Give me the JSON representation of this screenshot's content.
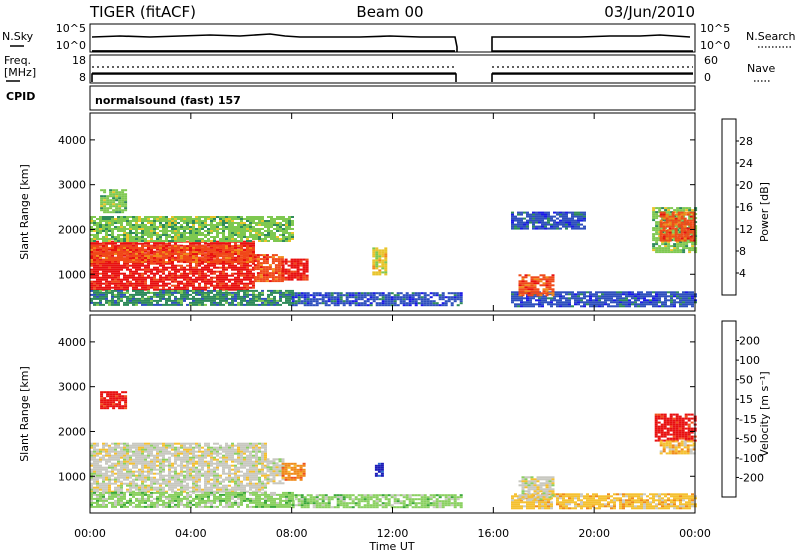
{
  "header": {
    "radar": "TIGER (fitACF)",
    "beam": "Beam 00",
    "date": "03/Jun/2010"
  },
  "summary": {
    "nsky_label": "N.Sky",
    "nsky_ticks": [
      "10^5",
      "10^0"
    ],
    "nsearch_label": "N.Search",
    "nsearch_ticks": [
      "10^5",
      "10^0"
    ],
    "freq_label_1": "Freq.",
    "freq_label_2": "[MHz]",
    "freq_ticks": [
      "18",
      "8"
    ],
    "nave_label": "Nave",
    "nave_ticks": [
      "60",
      "0"
    ],
    "cpid_label": "CPID",
    "cpid_value": "normalsound (fast) 157"
  },
  "x_axis": {
    "label": "Time UT",
    "ticks": [
      "00:00",
      "04:00",
      "08:00",
      "12:00",
      "16:00",
      "20:00",
      "00:00"
    ]
  },
  "chart_data": [
    {
      "type": "heatmap",
      "name": "power",
      "ylabel": "Slant Range [km]",
      "xlabel": "Time UT",
      "x_range_hours": [
        0,
        24
      ],
      "ylim": [
        180,
        4600
      ],
      "y_ticks": [
        1000,
        2000,
        3000,
        4000
      ],
      "data_gap_hours": [
        14.7,
        16.7
      ],
      "colorbar": {
        "label": "Power [dB]",
        "tick_labels": [
          "28",
          "24",
          "20",
          "16",
          "12",
          "8",
          "4"
        ],
        "levels": [
          {
            "from": 0,
            "to": 4,
            "color": "#1a1ae6"
          },
          {
            "from": 4,
            "to": 8,
            "color": "#2e4fbd"
          },
          {
            "from": 8,
            "to": 12,
            "color": "#2e8a5a"
          },
          {
            "from": 12,
            "to": 16,
            "color": "#7ec850"
          },
          {
            "from": 16,
            "to": 20,
            "color": "#e8c42a"
          },
          {
            "from": 20,
            "to": 24,
            "color": "#f08a1a"
          },
          {
            "from": 24,
            "to": 28,
            "color": "#f04a1a"
          },
          {
            "from": 28,
            "to": 32,
            "color": "#e81010"
          }
        ]
      },
      "regions": [
        {
          "t": [
            0.0,
            6.5
          ],
          "r": [
            650,
            1750
          ],
          "level": 7
        },
        {
          "t": [
            0.0,
            6.5
          ],
          "r": [
            1250,
            1650
          ],
          "level": 6
        },
        {
          "t": [
            6.5,
            7.6
          ],
          "r": [
            850,
            1450
          ],
          "level": 6
        },
        {
          "t": [
            7.6,
            8.6
          ],
          "r": [
            900,
            1350
          ],
          "level": 7
        },
        {
          "t": [
            0.0,
            8.0
          ],
          "r": [
            300,
            650
          ],
          "level": 2
        },
        {
          "t": [
            8.0,
            14.7
          ],
          "r": [
            300,
            600
          ],
          "level": 1
        },
        {
          "t": [
            0.0,
            8.0
          ],
          "r": [
            1750,
            2300
          ],
          "level": 3
        },
        {
          "t": [
            0.4,
            1.4
          ],
          "r": [
            2400,
            2900
          ],
          "level": 3
        },
        {
          "t": [
            16.7,
            24.0
          ],
          "r": [
            300,
            620
          ],
          "level": 1
        },
        {
          "t": [
            17.0,
            18.4
          ],
          "r": [
            550,
            1000
          ],
          "level": 6
        },
        {
          "t": [
            16.7,
            19.6
          ],
          "r": [
            2000,
            2400
          ],
          "level": 1
        },
        {
          "t": [
            22.3,
            24.0
          ],
          "r": [
            1500,
            2500
          ],
          "level": 3
        },
        {
          "t": [
            22.6,
            24.0
          ],
          "r": [
            1750,
            2400
          ],
          "level": 6
        },
        {
          "t": [
            11.2,
            11.7
          ],
          "r": [
            1000,
            1600
          ],
          "level": 4
        }
      ]
    },
    {
      "type": "heatmap",
      "name": "velocity",
      "ylabel": "Slant Range [km]",
      "xlabel": "Time UT",
      "x_range_hours": [
        0,
        24
      ],
      "ylim": [
        180,
        4600
      ],
      "y_ticks": [
        1000,
        2000,
        3000,
        4000
      ],
      "data_gap_hours": [
        14.7,
        16.7
      ],
      "colorbar": {
        "label": "Velocity [m s⁻¹]",
        "tick_labels": [
          "200",
          "100",
          "50",
          "15",
          "-15",
          "-50",
          "-100",
          "-200"
        ],
        "levels": [
          {
            "from": -300,
            "to": -200,
            "color": "#e81010"
          },
          {
            "from": -200,
            "to": -100,
            "color": "#f0501a"
          },
          {
            "from": -100,
            "to": -50,
            "color": "#f08a1a"
          },
          {
            "from": -50,
            "to": -15,
            "color": "#f5c030"
          },
          {
            "from": -15,
            "to": 15,
            "color": "#c8c8c0"
          },
          {
            "from": 15,
            "to": 50,
            "color": "#8ad060"
          },
          {
            "from": 50,
            "to": 100,
            "color": "#3aa83a"
          },
          {
            "from": 100,
            "to": 200,
            "color": "#2e6ad0"
          },
          {
            "from": 200,
            "to": 300,
            "color": "#1a1ab8"
          }
        ]
      },
      "regions": [
        {
          "t": [
            0.0,
            7.0
          ],
          "r": [
            650,
            1750
          ],
          "level": 4
        },
        {
          "t": [
            7.0,
            7.6
          ],
          "r": [
            850,
            1400
          ],
          "level": 4
        },
        {
          "t": [
            7.6,
            8.5
          ],
          "r": [
            900,
            1300
          ],
          "level": 2
        },
        {
          "t": [
            0.0,
            8.0
          ],
          "r": [
            300,
            650
          ],
          "level": 5
        },
        {
          "t": [
            8.0,
            14.7
          ],
          "r": [
            300,
            600
          ],
          "level": 5
        },
        {
          "t": [
            0.4,
            1.4
          ],
          "r": [
            2500,
            2900
          ],
          "level": 0
        },
        {
          "t": [
            16.7,
            24.0
          ],
          "r": [
            300,
            620
          ],
          "level": 3
        },
        {
          "t": [
            17.0,
            18.4
          ],
          "r": [
            500,
            1000
          ],
          "level": 4
        },
        {
          "t": [
            22.4,
            24.0
          ],
          "r": [
            1800,
            2400
          ],
          "level": 0
        },
        {
          "t": [
            22.6,
            24.0
          ],
          "r": [
            1500,
            1800
          ],
          "level": 3
        },
        {
          "t": [
            11.3,
            11.6
          ],
          "r": [
            1000,
            1300
          ],
          "level": 8
        }
      ]
    }
  ]
}
